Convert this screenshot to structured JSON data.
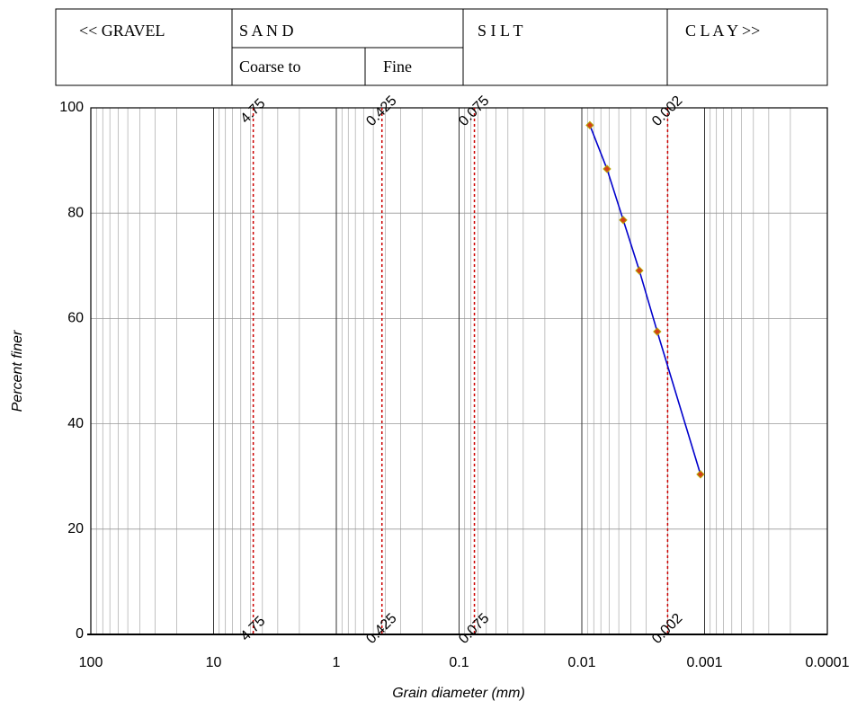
{
  "header": {
    "gravel": "<< GRAVEL",
    "sand": "S A N D",
    "sand_coarse": "Coarse to",
    "sand_fine": "Fine",
    "silt": "S I L T",
    "clay": "C L A Y >>"
  },
  "chart_data": {
    "type": "line",
    "x_label": "Grain diameter (mm)",
    "y_label": "Percent finer",
    "x": [
      0.0086,
      0.00624,
      0.0046,
      0.0034,
      0.00243,
      0.00108
    ],
    "series": [
      {
        "values": [
          96.7,
          88.4,
          78.7,
          69.1,
          57.5,
          30.4
        ],
        "color": "#0000cc",
        "marker_color": "#d2401a"
      }
    ],
    "xlim": [
      100,
      0.0001
    ],
    "xticks": [
      100,
      10,
      1,
      0.1,
      0.01,
      0.001,
      0.0001
    ],
    "x_log": true,
    "ylim": [
      0,
      100
    ],
    "yticks": [
      0,
      20,
      40,
      60,
      80,
      100
    ],
    "grid": true,
    "reference_lines": [
      4.75,
      0.425,
      0.075,
      0.002
    ],
    "reference_color": "#cc0000"
  }
}
